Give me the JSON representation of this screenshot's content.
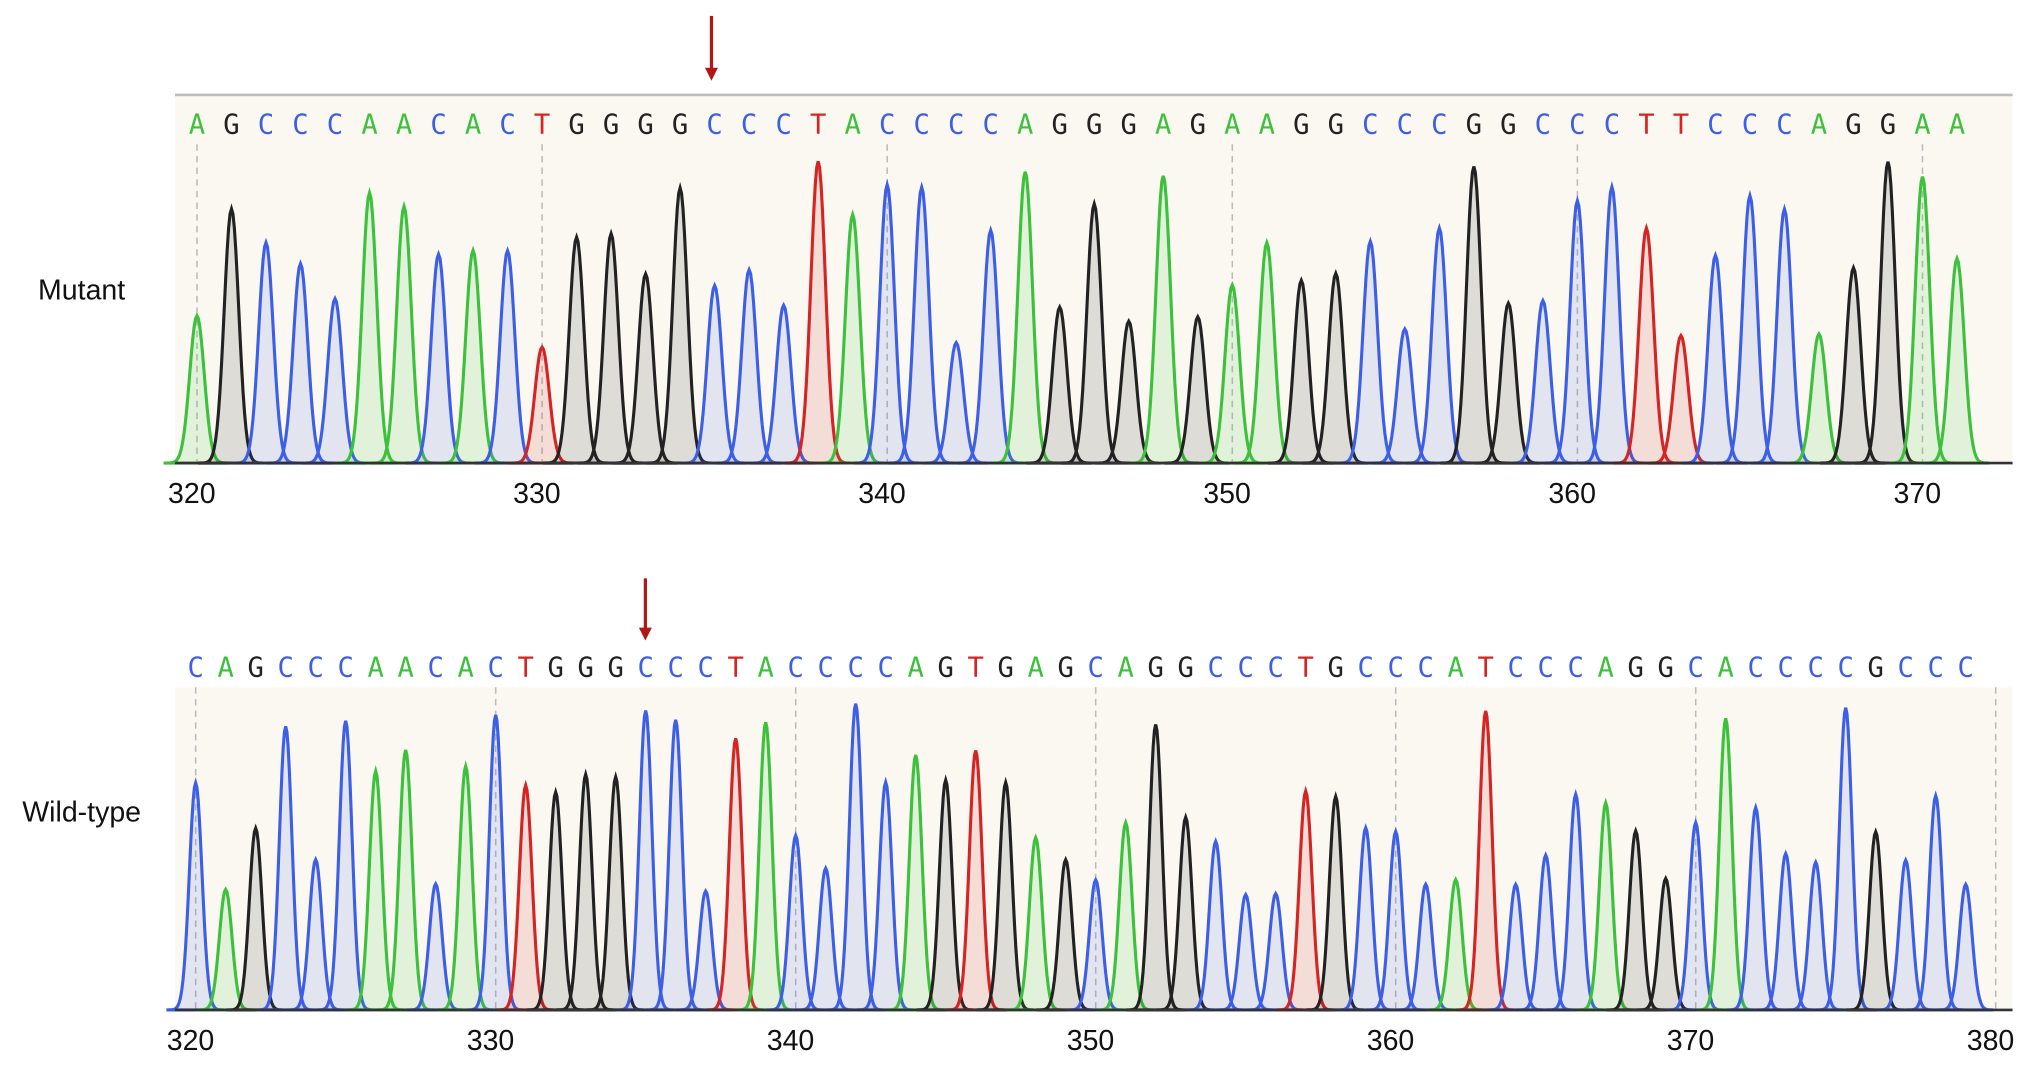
{
  "panels": [
    {
      "label": "Mutant",
      "bases": [
        "A",
        "G",
        "C",
        "C",
        "C",
        "A",
        "A",
        "C",
        "A",
        "C",
        "T",
        "G",
        "G",
        "G",
        "G",
        "C",
        "C",
        "C",
        "T",
        "A",
        "C",
        "C",
        "C",
        "C",
        "A",
        "G",
        "G",
        "G",
        "A",
        "G",
        "A",
        "A",
        "G",
        "G",
        "C",
        "C",
        "C",
        "G",
        "G",
        "C",
        "C",
        "C",
        "T",
        "T",
        "C",
        "C",
        "C",
        "A",
        "G",
        "G",
        "A",
        "A"
      ],
      "xticks": [
        320,
        330,
        340,
        350,
        360,
        370
      ]
    },
    {
      "label": "Wild-type",
      "bases": [
        "C",
        "A",
        "G",
        "C",
        "C",
        "C",
        "A",
        "A",
        "C",
        "A",
        "C",
        "T",
        "G",
        "G",
        "G",
        "C",
        "C",
        "C",
        "T",
        "A",
        "C",
        "C",
        "C",
        "C",
        "A",
        "G",
        "T",
        "G",
        "A",
        "G",
        "C",
        "A",
        "G",
        "G",
        "C",
        "C",
        "C",
        "T",
        "G",
        "C",
        "C",
        "C",
        "A",
        "T",
        "C",
        "C",
        "C",
        "A",
        "G",
        "G",
        "C",
        "A",
        "C",
        "C",
        "C",
        "C",
        "G",
        "C",
        "C",
        "C"
      ],
      "xticks": [
        320,
        330,
        340,
        350,
        360,
        370,
        380
      ]
    }
  ]
}
